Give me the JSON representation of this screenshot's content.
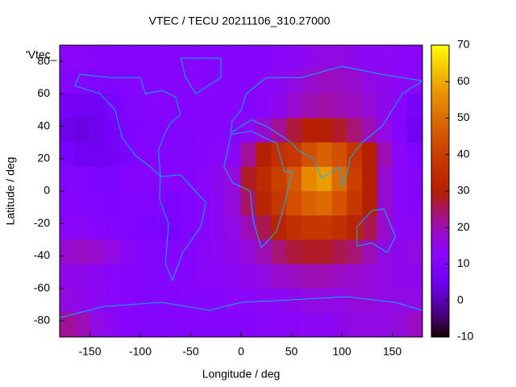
{
  "chart_data": {
    "type": "heatmap",
    "title": "VTEC / TECU 20211106_310.27000",
    "key_label": "'Vtec_",
    "xlabel": "Longitude / deg",
    "ylabel": "Latitude / deg",
    "xlim": [
      -180,
      180
    ],
    "ylim": [
      -90,
      90
    ],
    "xticks": [
      -150,
      -100,
      -50,
      0,
      50,
      100,
      150
    ],
    "yticks": [
      -80,
      -60,
      -40,
      -20,
      0,
      20,
      40,
      60,
      80
    ],
    "cblim": [
      -10,
      70
    ],
    "cbticks": [
      -10,
      0,
      10,
      20,
      30,
      40,
      50,
      60,
      70
    ],
    "colormap": "gnuplot",
    "x": [
      -172.5,
      -157.5,
      -142.5,
      -127.5,
      -112.5,
      -97.5,
      -82.5,
      -67.5,
      -52.5,
      -37.5,
      -22.5,
      -7.5,
      7.5,
      22.5,
      37.5,
      52.5,
      67.5,
      82.5,
      97.5,
      112.5,
      127.5,
      142.5,
      157.5,
      172.5
    ],
    "y": [
      82.5,
      67.5,
      52.5,
      37.5,
      22.5,
      7.5,
      -7.5,
      -22.5,
      -37.5,
      -52.5,
      -67.5,
      -82.5
    ],
    "z": [
      [
        13,
        13,
        12,
        12,
        12,
        12,
        12,
        12,
        12,
        12,
        12,
        12,
        12,
        12,
        13,
        14,
        15,
        16,
        16,
        15,
        14,
        14,
        13,
        13
      ],
      [
        12,
        11,
        10,
        10,
        11,
        12,
        12,
        12,
        12,
        12,
        12,
        12,
        12,
        13,
        14,
        16,
        18,
        19,
        19,
        18,
        16,
        15,
        14,
        13
      ],
      [
        7,
        6,
        6,
        8,
        10,
        12,
        12,
        11,
        11,
        12,
        12,
        12,
        12,
        13,
        15,
        18,
        20,
        21,
        20,
        19,
        17,
        15,
        12,
        8
      ],
      [
        5,
        4,
        5,
        7,
        9,
        10,
        11,
        11,
        11,
        12,
        12,
        12,
        14,
        18,
        22,
        27,
        30,
        30,
        28,
        24,
        20,
        16,
        11,
        6
      ],
      [
        8,
        6,
        6,
        7,
        9,
        11,
        11,
        11,
        11,
        12,
        13,
        14,
        22,
        30,
        36,
        38,
        44,
        48,
        44,
        38,
        30,
        20,
        13,
        10
      ],
      [
        11,
        10,
        9,
        9,
        11,
        12,
        12,
        12,
        12,
        13,
        15,
        17,
        28,
        34,
        40,
        46,
        55,
        58,
        50,
        40,
        30,
        18,
        13,
        12
      ],
      [
        12,
        11,
        10,
        9,
        10,
        11,
        10,
        9,
        10,
        12,
        14,
        17,
        25,
        32,
        38,
        44,
        48,
        50,
        45,
        38,
        30,
        18,
        13,
        12
      ],
      [
        13,
        13,
        12,
        11,
        10,
        9,
        9,
        8,
        10,
        12,
        14,
        16,
        20,
        26,
        32,
        36,
        38,
        38,
        36,
        32,
        26,
        18,
        14,
        13
      ],
      [
        18,
        19,
        18,
        16,
        14,
        12,
        11,
        11,
        12,
        13,
        14,
        15,
        17,
        20,
        24,
        27,
        28,
        28,
        26,
        24,
        20,
        16,
        15,
        16
      ],
      [
        15,
        15,
        14,
        13,
        12,
        11,
        11,
        12,
        12,
        13,
        13,
        14,
        15,
        16,
        18,
        19,
        20,
        20,
        19,
        18,
        17,
        16,
        15,
        15
      ],
      [
        16,
        15,
        14,
        13,
        12,
        11,
        11,
        11,
        12,
        12,
        12,
        13,
        13,
        14,
        14,
        15,
        16,
        16,
        16,
        17,
        17,
        16,
        16,
        16
      ],
      [
        22,
        20,
        16,
        14,
        12,
        11,
        11,
        11,
        11,
        12,
        12,
        12,
        12,
        13,
        13,
        13,
        14,
        14,
        15,
        16,
        16,
        16,
        17,
        19
      ]
    ]
  }
}
